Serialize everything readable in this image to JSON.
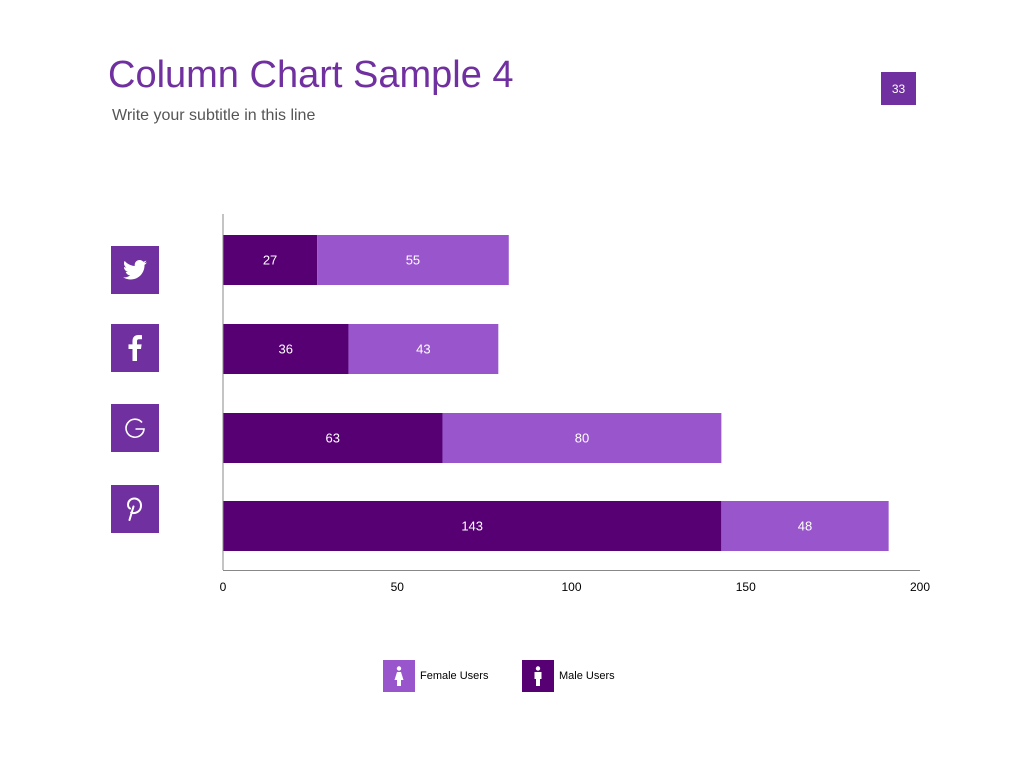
{
  "slide": {
    "title": "Column Chart Sample 4",
    "subtitle": "Write your subtitle in this line",
    "page_number": "33"
  },
  "colors": {
    "accent": "#7030A0",
    "male": "#560073",
    "female": "#9955CC"
  },
  "icons": [
    "twitter-icon",
    "facebook-icon",
    "google-icon",
    "pinterest-icon"
  ],
  "chart_data": {
    "type": "bar",
    "orientation": "horizontal",
    "stacked": true,
    "categories": [
      "Twitter",
      "Facebook",
      "Google",
      "Pinterest"
    ],
    "series": [
      {
        "name": "Male Users",
        "values": [
          27,
          36,
          63,
          143
        ]
      },
      {
        "name": "Female Users",
        "values": [
          55,
          43,
          80,
          48
        ]
      }
    ],
    "xlim": [
      0,
      200
    ],
    "xticks": [
      0,
      50,
      100,
      150,
      200
    ],
    "grid": false,
    "data_labels": true,
    "legend": {
      "position": "bottom",
      "entries": [
        "Female Users",
        "Male Users"
      ]
    }
  }
}
